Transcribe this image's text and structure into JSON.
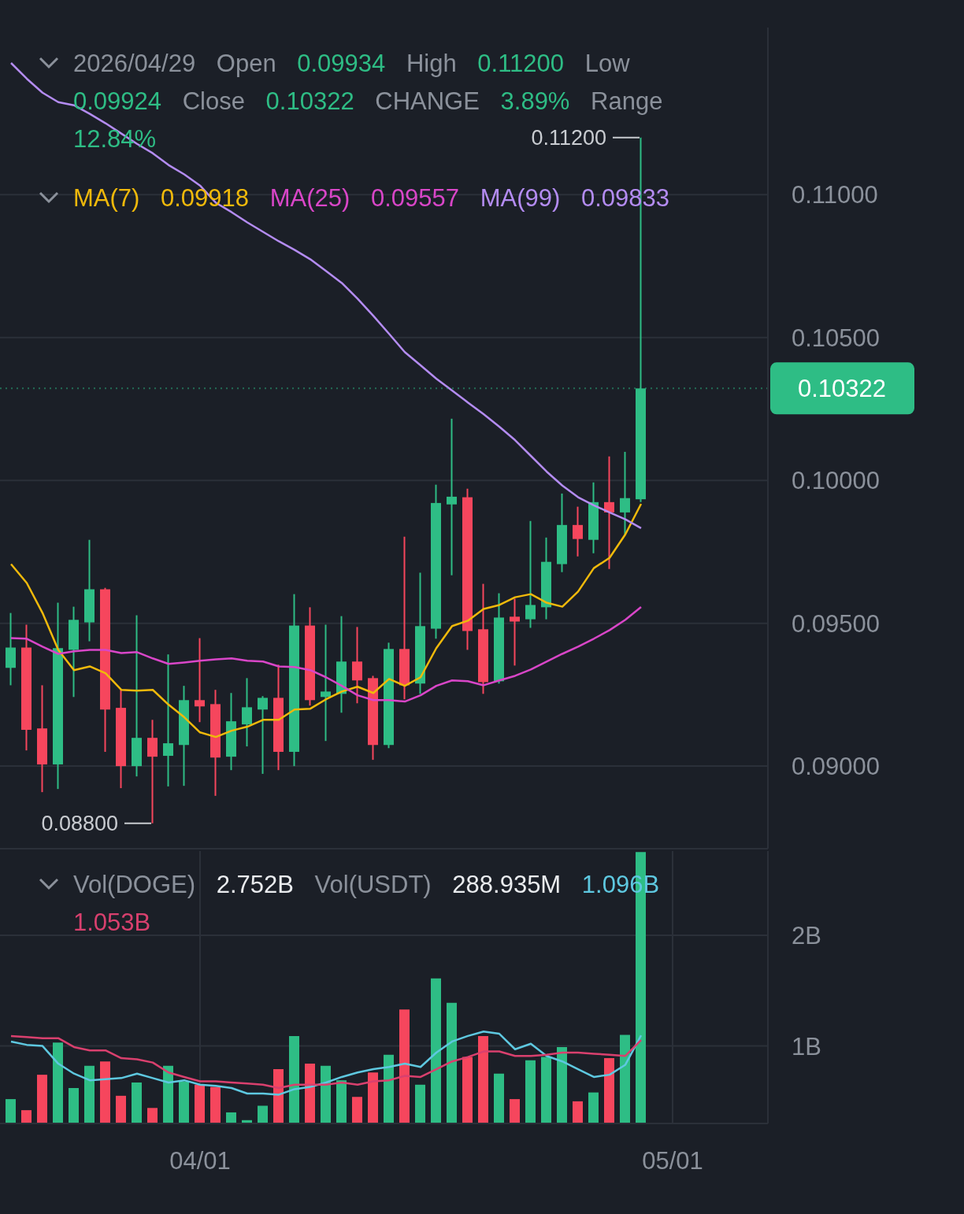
{
  "chart_data": [
    {
      "type": "candlestick",
      "x": [
        "2026-03-20",
        "2026-03-21",
        "2026-03-22",
        "2026-03-23",
        "2026-03-24",
        "2026-03-25",
        "2026-03-26",
        "2026-03-27",
        "2026-03-28",
        "2026-03-29",
        "2026-03-30",
        "2026-03-31",
        "2026-04-01",
        "2026-04-02",
        "2026-04-03",
        "2026-04-04",
        "2026-04-05",
        "2026-04-06",
        "2026-04-07",
        "2026-04-08",
        "2026-04-09",
        "2026-04-10",
        "2026-04-11",
        "2026-04-12",
        "2026-04-13",
        "2026-04-14",
        "2026-04-15",
        "2026-04-16",
        "2026-04-17",
        "2026-04-18",
        "2026-04-19",
        "2026-04-20",
        "2026-04-21",
        "2026-04-22",
        "2026-04-23",
        "2026-04-24",
        "2026-04-25",
        "2026-04-26",
        "2026-04-27",
        "2026-04-28",
        "2026-04-29"
      ],
      "ohlc": [
        [
          0.09344,
          0.09536,
          0.09283,
          0.09415
        ],
        [
          0.09415,
          0.09495,
          0.09055,
          0.09127
        ],
        [
          0.09132,
          0.09283,
          0.08909,
          0.09006
        ],
        [
          0.09006,
          0.09572,
          0.0892,
          0.09413
        ],
        [
          0.09407,
          0.09558,
          0.09242,
          0.09512
        ],
        [
          0.09503,
          0.09792,
          0.09437,
          0.09619
        ],
        [
          0.09619,
          0.09624,
          0.0905,
          0.09198
        ],
        [
          0.09204,
          0.09267,
          0.08923,
          0.09
        ],
        [
          0.09,
          0.09528,
          0.08964,
          0.09099
        ],
        [
          0.09099,
          0.09162,
          0.088,
          0.09033
        ],
        [
          0.09036,
          0.09391,
          0.08929,
          0.0908
        ],
        [
          0.09074,
          0.09281,
          0.08931,
          0.09231
        ],
        [
          0.09231,
          0.09448,
          0.09154,
          0.09209
        ],
        [
          0.09217,
          0.09267,
          0.08896,
          0.0903
        ],
        [
          0.09033,
          0.09256,
          0.08986,
          0.09157
        ],
        [
          0.09146,
          0.09308,
          0.09069,
          0.09206
        ],
        [
          0.09198,
          0.09245,
          0.08973,
          0.09239
        ],
        [
          0.09239,
          0.09355,
          0.08986,
          0.0905
        ],
        [
          0.0905,
          0.09602,
          0.09,
          0.09492
        ],
        [
          0.09492,
          0.09556,
          0.09212,
          0.09231
        ],
        [
          0.09242,
          0.09495,
          0.09088,
          0.09261
        ],
        [
          0.09253,
          0.09525,
          0.09187,
          0.09366
        ],
        [
          0.09366,
          0.09487,
          0.0922,
          0.093
        ],
        [
          0.09308,
          0.09316,
          0.09022,
          0.09074
        ],
        [
          0.09074,
          0.09432,
          0.09063,
          0.0941
        ],
        [
          0.0941,
          0.09803,
          0.09234,
          0.09283
        ],
        [
          0.09289,
          0.09677,
          0.09253,
          0.0949
        ],
        [
          0.09481,
          0.09985,
          0.09446,
          0.09921
        ],
        [
          0.09916,
          0.10216,
          0.09668,
          0.09943
        ],
        [
          0.09941,
          0.09971,
          0.09407,
          0.09473
        ],
        [
          0.09479,
          0.09638,
          0.09253,
          0.09294
        ],
        [
          0.09297,
          0.09605,
          0.09289,
          0.0952
        ],
        [
          0.09523,
          0.09586,
          0.09352,
          0.09506
        ],
        [
          0.09514,
          0.09858,
          0.09484,
          0.09564
        ],
        [
          0.09556,
          0.098,
          0.09514,
          0.09715
        ],
        [
          0.09707,
          0.09954,
          0.09679,
          0.09844
        ],
        [
          0.09844,
          0.09908,
          0.09734,
          0.09795
        ],
        [
          0.09792,
          0.09993,
          0.09745,
          0.09924
        ],
        [
          0.09924,
          0.10084,
          0.0969,
          0.09888
        ],
        [
          0.09888,
          0.101,
          0.09811,
          0.09938
        ],
        [
          0.09934,
          0.112,
          0.09924,
          0.10322
        ]
      ],
      "colors": [
        "#2ebd85",
        "#f6465d",
        "#f6465d",
        "#2ebd85",
        "#2ebd85",
        "#2ebd85",
        "#f6465d",
        "#f6465d",
        "#2ebd85",
        "#f6465d",
        "#2ebd85",
        "#2ebd85",
        "#f6465d",
        "#f6465d",
        "#2ebd85",
        "#2ebd85",
        "#2ebd85",
        "#f6465d",
        "#2ebd85",
        "#f6465d",
        "#2ebd85",
        "#2ebd85",
        "#f6465d",
        "#f6465d",
        "#2ebd85",
        "#f6465d",
        "#2ebd85",
        "#2ebd85",
        "#2ebd85",
        "#f6465d",
        "#f6465d",
        "#2ebd85",
        "#f6465d",
        "#2ebd85",
        "#2ebd85",
        "#2ebd85",
        "#f6465d",
        "#2ebd85",
        "#f6465d",
        "#2ebd85",
        "#2ebd85"
      ],
      "series": [
        {
          "name": "MA(7)",
          "type": "line",
          "color": "#f0b90b",
          "values": [
            0.09707,
            0.09641,
            0.09536,
            0.09407,
            0.09336,
            0.09349,
            0.09325,
            0.09267,
            0.09264,
            0.09267,
            0.09215,
            0.09171,
            0.09118,
            0.09102,
            0.09124,
            0.09138,
            0.09162,
            0.09162,
            0.09198,
            0.09201,
            0.09234,
            0.09261,
            0.09278,
            0.09256,
            0.09305,
            0.09281,
            0.09311,
            0.09413,
            0.0949,
            0.09509,
            0.0955,
            0.09564,
            0.09591,
            0.09602,
            0.09572,
            0.09558,
            0.09611,
            0.09693,
            0.09729,
            0.09811,
            0.09918
          ]
        },
        {
          "name": "MA(25)",
          "type": "line",
          "color": "#d946c8",
          "values": [
            0.09448,
            0.09446,
            0.09418,
            0.09393,
            0.09402,
            0.09407,
            0.09407,
            0.09396,
            0.09399,
            0.09377,
            0.09358,
            0.09363,
            0.09369,
            0.09374,
            0.09377,
            0.09369,
            0.09366,
            0.09349,
            0.09347,
            0.09336,
            0.09311,
            0.09281,
            0.09248,
            0.09231,
            0.09231,
            0.09226,
            0.09248,
            0.09281,
            0.093,
            0.09297,
            0.09283,
            0.093,
            0.09316,
            0.09338,
            0.09366,
            0.09393,
            0.09418,
            0.09446,
            0.09476,
            0.09512,
            0.09557
          ]
        },
        {
          "name": "MA(99)",
          "type": "line",
          "color": "#b48cf2",
          "values": [
            0.11461,
            0.11406,
            0.11357,
            0.11324,
            0.11313,
            0.11283,
            0.1125,
            0.11214,
            0.11178,
            0.11145,
            0.11104,
            0.11071,
            0.11032,
            0.10972,
            0.10939,
            0.10903,
            0.1087,
            0.10837,
            0.10807,
            0.10774,
            0.10733,
            0.10691,
            0.10636,
            0.10576,
            0.10513,
            0.10449,
            0.10403,
            0.10356,
            0.10315,
            0.10273,
            0.10232,
            0.10188,
            0.10141,
            0.10086,
            0.10031,
            0.09982,
            0.09941,
            0.09913,
            0.09888,
            0.09864,
            0.09833
          ]
        }
      ],
      "xlim": [
        "2026-03-19T07:12",
        "2026-05-07T01:12"
      ],
      "xticks": [
        {
          "value": "2026-04-01",
          "label": null
        },
        {
          "value": "2026-05-01",
          "label": null
        }
      ],
      "ylim": [
        0.08711,
        0.11585
      ],
      "yticks": [
        {
          "value": 0.09,
          "label": "0.09000"
        },
        {
          "value": 0.095,
          "label": "0.09500"
        },
        {
          "value": 0.1,
          "label": "0.10000"
        },
        {
          "value": 0.105,
          "label": "0.10500"
        },
        {
          "value": 0.11,
          "label": "0.11000"
        }
      ],
      "grid": true,
      "legend": "top",
      "tick_labels": "y",
      "annotations": [
        "2026/04/29",
        "Open 0.09934",
        "High 0.11200",
        "Low 0.09924",
        "Close 0.10322",
        "CHANGE 3.89%",
        "Range 12.84%",
        {
          "text": "0.11200",
          "x": "2026-04-29",
          "y": 0.112
        },
        {
          "text": "0.08800",
          "x": "2026-03-29",
          "y": 0.088
        },
        "0.09918",
        "0.09557",
        "0.09833"
      ],
      "ref_lines": [
        {
          "axis": "y",
          "value": 0.10322,
          "label": "0.10322",
          "color": "#2ebd85",
          "line_style": "dotted"
        }
      ]
    },
    {
      "type": "bar",
      "x": [
        "2026-03-20",
        "2026-03-21",
        "2026-03-22",
        "2026-03-23",
        "2026-03-24",
        "2026-03-25",
        "2026-03-26",
        "2026-03-27",
        "2026-03-28",
        "2026-03-29",
        "2026-03-30",
        "2026-03-31",
        "2026-04-01",
        "2026-04-02",
        "2026-04-03",
        "2026-04-04",
        "2026-04-05",
        "2026-04-06",
        "2026-04-07",
        "2026-04-08",
        "2026-04-09",
        "2026-04-10",
        "2026-04-11",
        "2026-04-12",
        "2026-04-13",
        "2026-04-14",
        "2026-04-15",
        "2026-04-16",
        "2026-04-17",
        "2026-04-18",
        "2026-04-19",
        "2026-04-20",
        "2026-04-21",
        "2026-04-22",
        "2026-04-23",
        "2026-04-24",
        "2026-04-25",
        "2026-04-26",
        "2026-04-27",
        "2026-04-28",
        "2026-04-29"
      ],
      "values": [
        0.52,
        0.42,
        0.74,
        1.03,
        0.62,
        0.82,
        0.86,
        0.55,
        0.67,
        0.44,
        0.82,
        0.68,
        0.65,
        0.63,
        0.4,
        0.33,
        0.46,
        0.79,
        1.09,
        0.84,
        0.82,
        0.69,
        0.54,
        0.76,
        0.92,
        1.33,
        0.65,
        1.61,
        1.39,
        0.9,
        1.09,
        0.75,
        0.52,
        0.87,
        0.9,
        0.99,
        0.5,
        0.58,
        0.89,
        1.1,
        2.752
      ],
      "colors": [
        "#2ebd85",
        "#f6465d",
        "#f6465d",
        "#2ebd85",
        "#2ebd85",
        "#2ebd85",
        "#f6465d",
        "#f6465d",
        "#2ebd85",
        "#f6465d",
        "#2ebd85",
        "#2ebd85",
        "#f6465d",
        "#f6465d",
        "#2ebd85",
        "#2ebd85",
        "#2ebd85",
        "#f6465d",
        "#2ebd85",
        "#f6465d",
        "#2ebd85",
        "#2ebd85",
        "#f6465d",
        "#f6465d",
        "#2ebd85",
        "#f6465d",
        "#2ebd85",
        "#2ebd85",
        "#2ebd85",
        "#f6465d",
        "#f6465d",
        "#2ebd85",
        "#f6465d",
        "#2ebd85",
        "#2ebd85",
        "#2ebd85",
        "#f6465d",
        "#2ebd85",
        "#f6465d",
        "#2ebd85",
        "#2ebd85"
      ],
      "series": [
        {
          "type": "line",
          "color": "#5ec8e0",
          "values": [
            1.04,
            1.01,
            1.0,
            0.84,
            0.75,
            0.69,
            0.7,
            0.71,
            0.75,
            0.71,
            0.67,
            0.69,
            0.65,
            0.64,
            0.62,
            0.57,
            0.57,
            0.56,
            0.61,
            0.63,
            0.67,
            0.72,
            0.76,
            0.79,
            0.81,
            0.84,
            0.81,
            0.94,
            1.04,
            1.09,
            1.13,
            1.11,
            0.97,
            1.02,
            0.91,
            0.86,
            0.79,
            0.72,
            0.74,
            0.83,
            1.096
          ]
        },
        {
          "type": "line",
          "color": "#d9406e",
          "values": [
            1.09,
            1.08,
            1.07,
            1.07,
            0.99,
            0.96,
            0.96,
            0.89,
            0.88,
            0.85,
            0.76,
            0.72,
            0.68,
            0.68,
            0.67,
            0.66,
            0.65,
            0.62,
            0.65,
            0.65,
            0.65,
            0.67,
            0.65,
            0.68,
            0.69,
            0.73,
            0.72,
            0.79,
            0.86,
            0.9,
            0.95,
            0.95,
            0.91,
            0.91,
            0.92,
            0.94,
            0.94,
            0.93,
            0.92,
            0.91,
            1.053
          ]
        }
      ],
      "xlim": [
        "2026-03-19T07:12",
        "2026-05-07T01:12"
      ],
      "xticks": [
        {
          "value": "2026-04-01",
          "label": "04/01"
        },
        {
          "value": "2026-05-01",
          "label": "05/01"
        }
      ],
      "ylim": [
        0.3,
        2.76
      ],
      "yticks": [
        {
          "value": 1,
          "label": "1B"
        },
        {
          "value": 2,
          "label": "2B"
        }
      ],
      "grid": true,
      "annotations": [
        "Vol(DOGE) 2.752B",
        "Vol(USDT) 288.935M",
        "1.096B",
        "1.053B"
      ]
    }
  ]
}
